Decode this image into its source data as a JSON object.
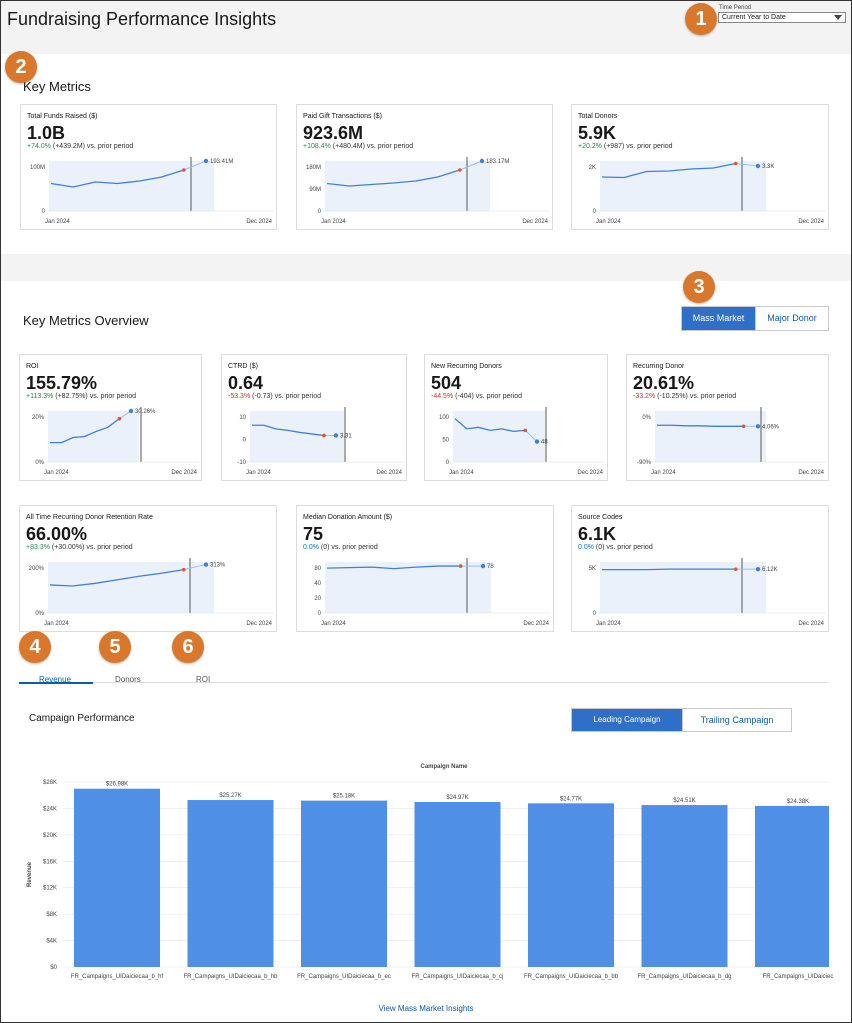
{
  "header": {
    "title": "Fundraising Performance Insights",
    "time_period_label": "Time Period",
    "time_period_value": "Current Year to Date"
  },
  "badges": [
    "1",
    "2",
    "3",
    "4",
    "5",
    "6"
  ],
  "key_metrics": {
    "title": "Key Metrics",
    "cards": [
      {
        "title": "Total Funds Raised ($)",
        "value": "1.0B",
        "delta_pct": "+74.0%",
        "delta_rest": "(+439.2M) vs. prior period",
        "trend": "up",
        "y_ticks": [
          "100M",
          "0"
        ],
        "end_label": "193.41M",
        "x_start": "Jan 2024",
        "x_end": "Dec 2024",
        "series": [
          0.55,
          0.48,
          0.58,
          0.55,
          0.6,
          0.68,
          0.82,
          1.0
        ],
        "y_max": 1.0
      },
      {
        "title": "Paid Gift Transactions ($)",
        "value": "923.6M",
        "delta_pct": "+108.4%",
        "delta_rest": "(+480.4M) vs. prior period",
        "trend": "up",
        "y_ticks": [
          "180M",
          "90M",
          "0"
        ],
        "end_label": "183.17M",
        "x_start": "Jan 2024",
        "x_end": "Dec 2024",
        "series": [
          0.55,
          0.5,
          0.53,
          0.56,
          0.6,
          0.68,
          0.82,
          1.0
        ],
        "y_max": 1.0
      },
      {
        "title": "Total Donors",
        "value": "5.9K",
        "delta_pct": "+20.2%",
        "delta_rest": "(+987) vs. prior period",
        "trend": "up",
        "y_ticks": [
          "2K",
          "0"
        ],
        "end_label": "3.3K",
        "x_start": "Jan 2024",
        "x_end": "Dec 2024",
        "series": [
          0.68,
          0.67,
          0.79,
          0.8,
          0.84,
          0.86,
          0.95,
          0.9
        ],
        "y_max": 1.0
      }
    ]
  },
  "overview": {
    "title": "Key Metrics Overview",
    "toggle": {
      "mass": "Mass Market",
      "major": "Major Donor"
    },
    "cards": [
      {
        "title": "ROI",
        "value": "155.79%",
        "delta_pct": "+113.3%",
        "delta_rest": "(+82.75%) vs. prior period",
        "trend": "up",
        "y_ticks": [
          "20%",
          "0%"
        ],
        "end_label": "30.26%",
        "x_start": "Jan 2024",
        "x_end": "Dec 2024",
        "series": [
          0.38,
          0.38,
          0.48,
          0.5,
          0.6,
          0.68,
          0.85,
          1.0
        ]
      },
      {
        "title": "CTRD ($)",
        "value": "0.64",
        "delta_pct": "-53.3%",
        "delta_rest": "(-0.73) vs. prior period",
        "trend": "down",
        "y_ticks": [
          "10",
          "0",
          "-10"
        ],
        "end_label": "3.31",
        "x_start": "Jan 2024",
        "x_end": "Dec 2024",
        "series": [
          0.72,
          0.72,
          0.65,
          0.62,
          0.58,
          0.55,
          0.52,
          0.52
        ]
      },
      {
        "title": "New Recurring Donors",
        "value": "504",
        "delta_pct": "-44.5%",
        "delta_rest": "(-404) vs. prior period",
        "trend": "down",
        "y_ticks": [
          "100",
          "50",
          "0"
        ],
        "end_label": "48",
        "x_start": "Jan 2024",
        "x_end": "Dec 2024",
        "series": [
          0.85,
          0.65,
          0.68,
          0.62,
          0.65,
          0.6,
          0.62,
          0.4
        ]
      },
      {
        "title": "Recurring Donor",
        "value": "20.61%",
        "delta_pct": "-33.2%",
        "delta_rest": "(-10.25%) vs. prior period",
        "trend": "down",
        "y_ticks": [
          "0%",
          "-90%"
        ],
        "end_label": "4.06%",
        "x_start": "Jan 2024",
        "x_end": "Dec 2024",
        "series": [
          0.72,
          0.72,
          0.71,
          0.71,
          0.7,
          0.7,
          0.7,
          0.7
        ]
      },
      {
        "title": "All Time Recurring Donor Retention Rate",
        "value": "66.00%",
        "delta_pct": "+83.3%",
        "delta_rest": "(+30.00%) vs. prior period",
        "trend": "up",
        "y_ticks": [
          "200%",
          "0%"
        ],
        "end_label": "313%",
        "x_start": "Jan 2024",
        "x_end": "Dec 2024",
        "series": [
          0.55,
          0.53,
          0.58,
          0.65,
          0.72,
          0.78,
          0.85,
          0.95
        ]
      },
      {
        "title": "Median Donation Amount ($)",
        "value": "75",
        "delta_pct": "0.0%",
        "delta_rest": "(0) vs. prior period",
        "trend": "flat",
        "y_ticks": [
          "80",
          "40",
          "20",
          "0"
        ],
        "end_label": "78",
        "x_start": "Jan 2024",
        "x_end": "Dec 2024",
        "series": [
          0.88,
          0.89,
          0.9,
          0.87,
          0.9,
          0.92,
          0.92,
          0.92
        ]
      },
      {
        "title": "Source Codes",
        "value": "6.1K",
        "delta_pct": "0.0%",
        "delta_rest": "(0) vs. prior period",
        "trend": "flat",
        "y_ticks": [
          "5K",
          "0"
        ],
        "end_label": "6.12K",
        "x_start": "Jan 2024",
        "x_end": "Dec 2024",
        "series": [
          0.85,
          0.85,
          0.85,
          0.86,
          0.86,
          0.86,
          0.86,
          0.86
        ]
      }
    ]
  },
  "tabs": [
    "Revenue",
    "Donors",
    "ROI"
  ],
  "campaign": {
    "title": "Campaign Performance",
    "toggle": {
      "leading": "Leading Campaign",
      "trailing": "Trailing Campaign"
    },
    "view_link": "View Mass Market Insights"
  },
  "chart_data": {
    "type": "bar",
    "title": "Campaign Name",
    "ylabel": "Revenue",
    "xlabel": "",
    "ylim": [
      0,
      28000
    ],
    "y_ticks": [
      "$28K",
      "$24K",
      "$20K",
      "$16K",
      "$12K",
      "$8K",
      "$4K",
      "$0"
    ],
    "categories": [
      "FR_Campaigns_UIDaiciecaa_b_hf",
      "FR_Campaigns_UIDaiciecaa_b_hb",
      "FR_Campaigns_UIDaiciecaa_b_ec",
      "FR_Campaigns_UIDaiciecaa_b_cj",
      "FR_Campaigns_UIDaiciecaa_b_bb",
      "FR_Campaigns_UIDaiciecaa_b_dg",
      "FR_Campaigns_UIDaiciec"
    ],
    "values": [
      26980,
      25270,
      25180,
      24970,
      24770,
      24510,
      24380
    ],
    "value_labels": [
      "$26.98K",
      "$25.27K",
      "$25.18K",
      "$24.97K",
      "$24.77K",
      "$24.51K",
      "$24.38K"
    ],
    "bar_color": "#4f8fe6"
  },
  "colors": {
    "line": "#3f7fdc",
    "band": "#eaf1fb",
    "marker_red": "#e0562c",
    "marker_blue": "#3f7fdc",
    "badge": "#d9782d"
  }
}
